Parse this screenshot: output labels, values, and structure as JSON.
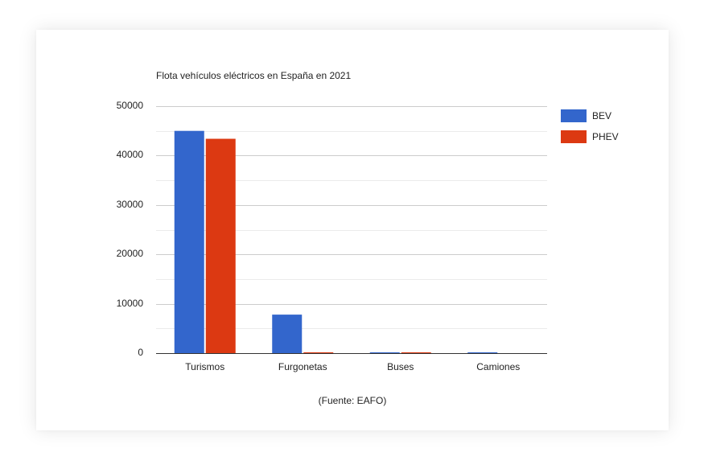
{
  "chart_data": {
    "type": "bar",
    "title": "Flota vehículos eléctricos en España en 2021",
    "caption": "(Fuente: EAFO)",
    "xlabel": "",
    "ylabel": "",
    "categories": [
      "Turismos",
      "Furgonetas",
      "Buses",
      "Camiones"
    ],
    "series": [
      {
        "name": "BEV",
        "color": "#3366cc",
        "values": [
          45000,
          7800,
          150,
          30
        ]
      },
      {
        "name": "PHEV",
        "color": "#dc3912",
        "values": [
          43400,
          50,
          20,
          0
        ]
      }
    ],
    "ylim": [
      0,
      50000
    ],
    "yticks": [
      "0",
      "10000",
      "20000",
      "30000",
      "40000",
      "50000"
    ],
    "grid": true,
    "legend_position": "right"
  }
}
